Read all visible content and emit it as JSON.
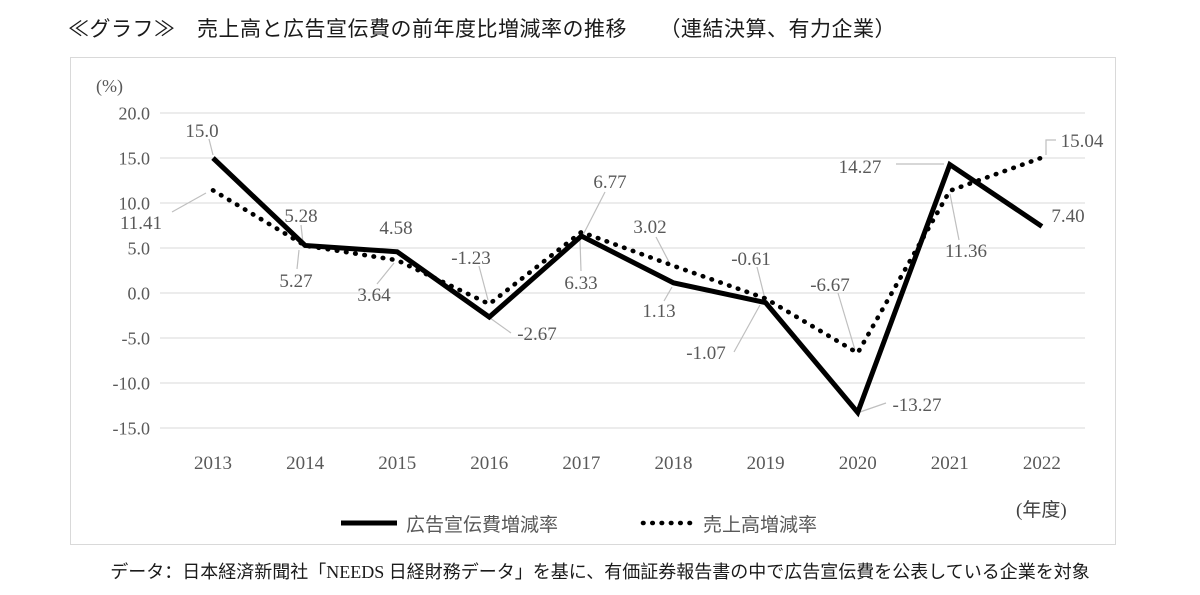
{
  "chart_data": {
    "type": "line",
    "title": "≪グラフ≫　売上高と広告宣伝費の前年度比増減率の推移　　（連結決算、有力企業）",
    "unit_label": "(%)",
    "x_axis_note": "(年度)",
    "categories": [
      "2013",
      "2014",
      "2015",
      "2016",
      "2017",
      "2018",
      "2019",
      "2020",
      "2021",
      "2022"
    ],
    "y_ticks": [
      "20.0",
      "15.0",
      "10.0",
      "5.0",
      "0.0",
      "-5.0",
      "-10.0",
      "-15.0"
    ],
    "ylim": [
      -15.0,
      20.0
    ],
    "grid": true,
    "legend_position": "bottom-inside",
    "series": [
      {
        "name": "広告宣伝費増減率",
        "line_style": "solid",
        "color": "#000000",
        "values": [
          15.0,
          5.28,
          4.58,
          -2.67,
          6.33,
          1.13,
          -1.07,
          -13.27,
          14.27,
          7.4
        ],
        "point_labels": [
          "15.0",
          "5.28",
          "4.58",
          "-2.67",
          "6.33",
          "1.13",
          "-1.07",
          "-13.27",
          "14.27",
          "7.40"
        ]
      },
      {
        "name": "売上高増減率",
        "line_style": "dotted",
        "color": "#000000",
        "values": [
          11.41,
          5.27,
          3.64,
          -1.23,
          6.77,
          3.02,
          -0.61,
          -6.67,
          11.36,
          15.04
        ],
        "point_labels": [
          "11.41",
          "5.27",
          "3.64",
          "-1.23",
          "6.77",
          "3.02",
          "-0.61",
          "-6.67",
          "11.36",
          "15.04"
        ]
      }
    ],
    "colors": {
      "grid_line": "#d9d9d9",
      "frame_border": "#d9d9d9",
      "axis_text": "#595959",
      "data_label_text": "#595959",
      "leader_line": "#bfbfbf",
      "series_line": "#000000"
    }
  },
  "footer": {
    "text": "データ：日本経済新聞社「NEEDS 日経財務データ」を基に、有価証券報告書の中で広告宣伝費を公表している企業を対象"
  }
}
